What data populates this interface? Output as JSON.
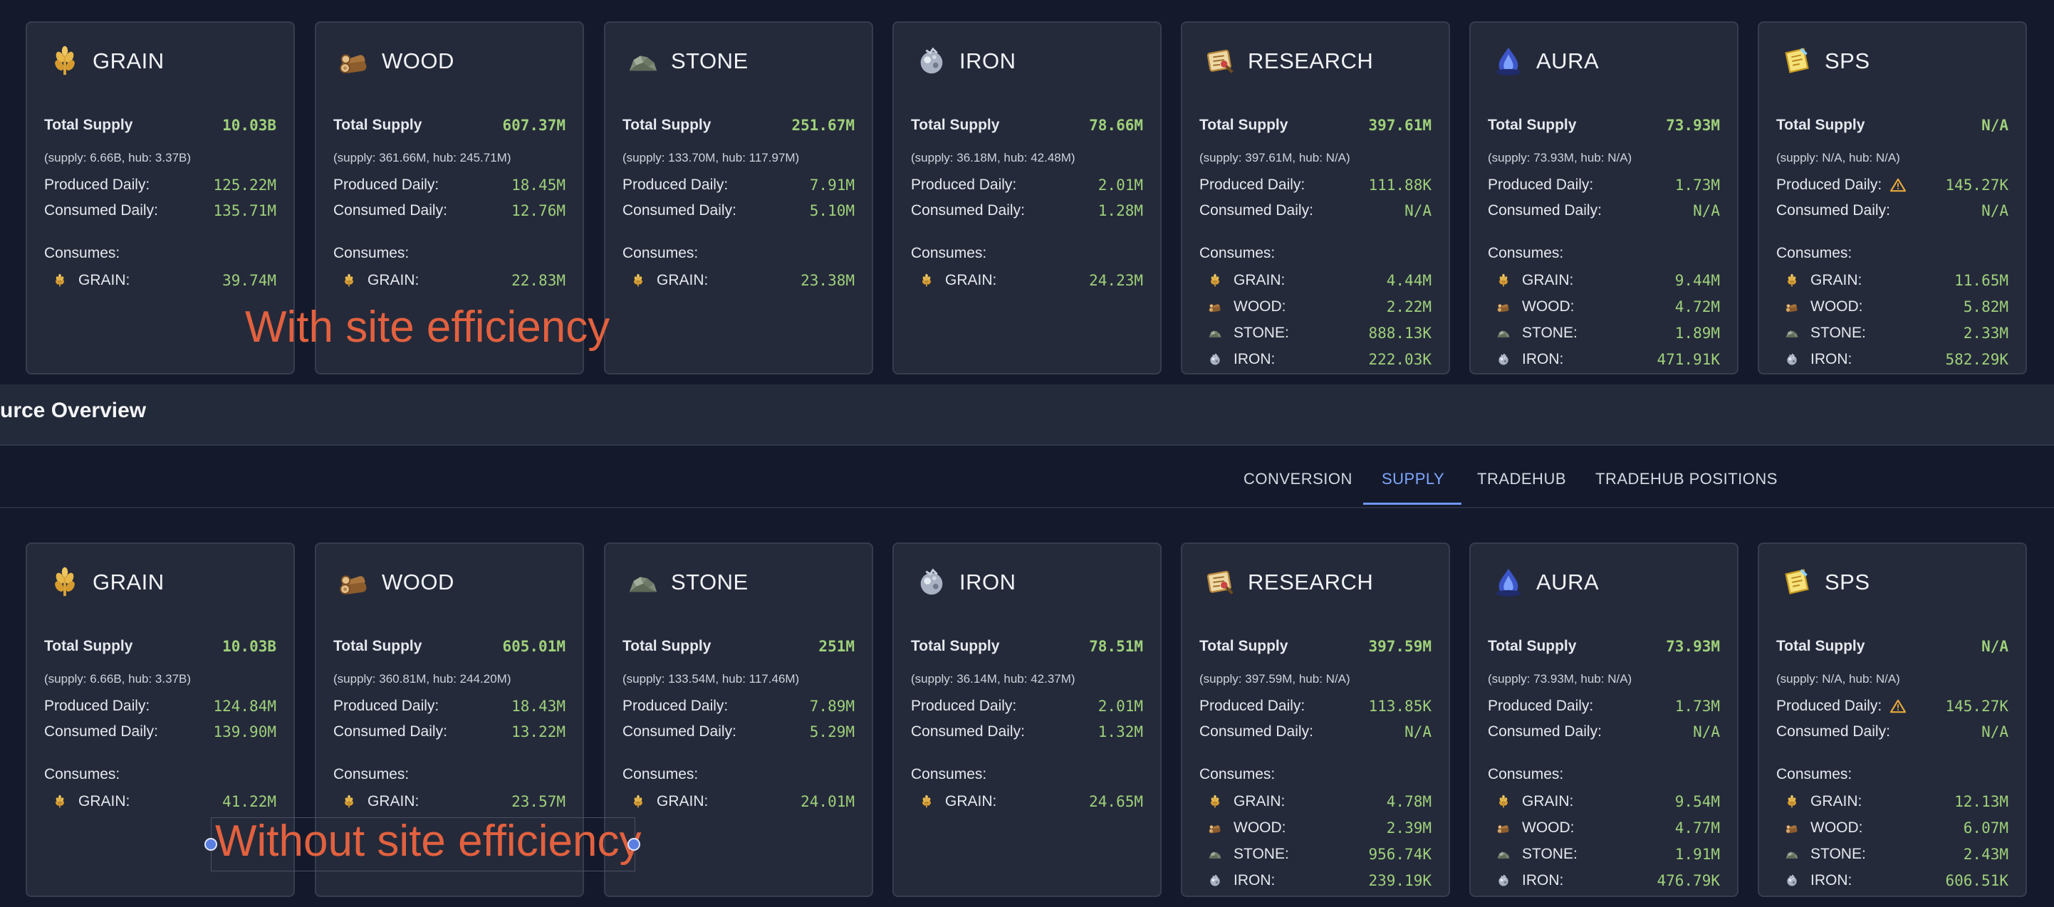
{
  "labels": {
    "total_supply": "Total Supply",
    "produced_daily": "Produced Daily:",
    "consumed_daily": "Consumed Daily:",
    "consumes": "Consumes:"
  },
  "header": {
    "title": "urce Overview"
  },
  "tabs": [
    {
      "label": "CONVERSION",
      "active": false
    },
    {
      "label": "SUPPLY",
      "active": true
    },
    {
      "label": "TRADEHUB",
      "active": false
    },
    {
      "label": "TRADEHUB POSITIONS",
      "active": false
    }
  ],
  "annotations": {
    "top": "With site efficiency",
    "bottom": "Without site efficiency"
  },
  "colors": {
    "value_green": "#9fd07a",
    "annotation": "#e2613f",
    "tab_active": "#7fa6ff"
  },
  "top": {
    "cards": [
      {
        "name": "GRAIN",
        "icon": "grain-icon",
        "total": "10.03B",
        "sub": "(supply: 6.66B, hub: 3.37B)",
        "produced": "125.22M",
        "consumed": "135.71M",
        "consumes": [
          {
            "name": "GRAIN:",
            "icon": "grain-icon",
            "value": "39.74M"
          }
        ]
      },
      {
        "name": "WOOD",
        "icon": "wood-icon",
        "total": "607.37M",
        "sub": "(supply: 361.66M, hub: 245.71M)",
        "produced": "18.45M",
        "consumed": "12.76M",
        "consumes": [
          {
            "name": "GRAIN:",
            "icon": "grain-icon",
            "value": "22.83M"
          }
        ]
      },
      {
        "name": "STONE",
        "icon": "stone-icon",
        "total": "251.67M",
        "sub": "(supply: 133.70M, hub: 117.97M)",
        "produced": "7.91M",
        "consumed": "5.10M",
        "consumes": [
          {
            "name": "GRAIN:",
            "icon": "grain-icon",
            "value": "23.38M"
          }
        ]
      },
      {
        "name": "IRON",
        "icon": "iron-icon",
        "total": "78.66M",
        "sub": "(supply: 36.18M, hub: 42.48M)",
        "produced": "2.01M",
        "consumed": "1.28M",
        "consumes": [
          {
            "name": "GRAIN:",
            "icon": "grain-icon",
            "value": "24.23M"
          }
        ]
      },
      {
        "name": "RESEARCH",
        "icon": "research-icon",
        "total": "397.61M",
        "sub": "(supply: 397.61M, hub: N/A)",
        "produced": "111.88K",
        "consumed": "N/A",
        "consumes": [
          {
            "name": "GRAIN:",
            "icon": "grain-icon",
            "value": "4.44M"
          },
          {
            "name": "WOOD:",
            "icon": "wood-icon",
            "value": "2.22M"
          },
          {
            "name": "STONE:",
            "icon": "stone-icon",
            "value": "888.13K"
          },
          {
            "name": "IRON:",
            "icon": "iron-icon",
            "value": "222.03K"
          }
        ]
      },
      {
        "name": "AURA",
        "icon": "aura-icon",
        "total": "73.93M",
        "sub": "(supply: 73.93M, hub: N/A)",
        "produced": "1.73M",
        "consumed": "N/A",
        "consumes": [
          {
            "name": "GRAIN:",
            "icon": "grain-icon",
            "value": "9.44M"
          },
          {
            "name": "WOOD:",
            "icon": "wood-icon",
            "value": "4.72M"
          },
          {
            "name": "STONE:",
            "icon": "stone-icon",
            "value": "1.89M"
          },
          {
            "name": "IRON:",
            "icon": "iron-icon",
            "value": "471.91K"
          }
        ]
      },
      {
        "name": "SPS",
        "icon": "sps-icon",
        "total": "N/A",
        "sub": "(supply: N/A, hub: N/A)",
        "produced": "145.27K",
        "consumed": "N/A",
        "warning": true,
        "consumes": [
          {
            "name": "GRAIN:",
            "icon": "grain-icon",
            "value": "11.65M"
          },
          {
            "name": "WOOD:",
            "icon": "wood-icon",
            "value": "5.82M"
          },
          {
            "name": "STONE:",
            "icon": "stone-icon",
            "value": "2.33M"
          },
          {
            "name": "IRON:",
            "icon": "iron-icon",
            "value": "582.29K"
          }
        ]
      }
    ]
  },
  "bottom": {
    "cards": [
      {
        "name": "GRAIN",
        "icon": "grain-icon",
        "total": "10.03B",
        "sub": "(supply: 6.66B, hub: 3.37B)",
        "produced": "124.84M",
        "consumed": "139.90M",
        "consumes": [
          {
            "name": "GRAIN:",
            "icon": "grain-icon",
            "value": "41.22M"
          }
        ]
      },
      {
        "name": "WOOD",
        "icon": "wood-icon",
        "total": "605.01M",
        "sub": "(supply: 360.81M, hub: 244.20M)",
        "produced": "18.43M",
        "consumed": "13.22M",
        "consumes": [
          {
            "name": "GRAIN:",
            "icon": "grain-icon",
            "value": "23.57M"
          }
        ]
      },
      {
        "name": "STONE",
        "icon": "stone-icon",
        "total": "251M",
        "sub": "(supply: 133.54M, hub: 117.46M)",
        "produced": "7.89M",
        "consumed": "5.29M",
        "consumes": [
          {
            "name": "GRAIN:",
            "icon": "grain-icon",
            "value": "24.01M"
          }
        ]
      },
      {
        "name": "IRON",
        "icon": "iron-icon",
        "total": "78.51M",
        "sub": "(supply: 36.14M, hub: 42.37M)",
        "produced": "2.01M",
        "consumed": "1.32M",
        "consumes": [
          {
            "name": "GRAIN:",
            "icon": "grain-icon",
            "value": "24.65M"
          }
        ]
      },
      {
        "name": "RESEARCH",
        "icon": "research-icon",
        "total": "397.59M",
        "sub": "(supply: 397.59M, hub: N/A)",
        "produced": "113.85K",
        "consumed": "N/A",
        "consumes": [
          {
            "name": "GRAIN:",
            "icon": "grain-icon",
            "value": "4.78M"
          },
          {
            "name": "WOOD:",
            "icon": "wood-icon",
            "value": "2.39M"
          },
          {
            "name": "STONE:",
            "icon": "stone-icon",
            "value": "956.74K"
          },
          {
            "name": "IRON:",
            "icon": "iron-icon",
            "value": "239.19K"
          }
        ]
      },
      {
        "name": "AURA",
        "icon": "aura-icon",
        "total": "73.93M",
        "sub": "(supply: 73.93M, hub: N/A)",
        "produced": "1.73M",
        "consumed": "N/A",
        "consumes": [
          {
            "name": "GRAIN:",
            "icon": "grain-icon",
            "value": "9.54M"
          },
          {
            "name": "WOOD:",
            "icon": "wood-icon",
            "value": "4.77M"
          },
          {
            "name": "STONE:",
            "icon": "stone-icon",
            "value": "1.91M"
          },
          {
            "name": "IRON:",
            "icon": "iron-icon",
            "value": "476.79K"
          }
        ]
      },
      {
        "name": "SPS",
        "icon": "sps-icon",
        "total": "N/A",
        "sub": "(supply: N/A, hub: N/A)",
        "produced": "145.27K",
        "consumed": "N/A",
        "warning": true,
        "consumes": [
          {
            "name": "GRAIN:",
            "icon": "grain-icon",
            "value": "12.13M"
          },
          {
            "name": "WOOD:",
            "icon": "wood-icon",
            "value": "6.07M"
          },
          {
            "name": "STONE:",
            "icon": "stone-icon",
            "value": "2.43M"
          },
          {
            "name": "IRON:",
            "icon": "iron-icon",
            "value": "606.51K"
          }
        ]
      }
    ]
  }
}
